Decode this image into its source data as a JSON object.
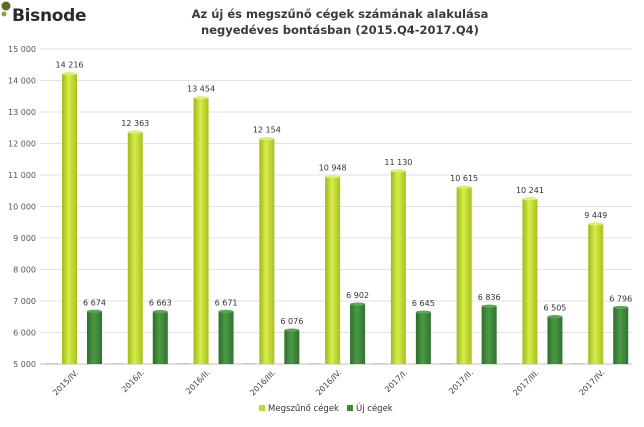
{
  "logo": {
    "text": "Bisnode"
  },
  "chart_data": {
    "type": "bar",
    "title_line1": "Az új és megszűnő cégek számának alakulása",
    "title_line2": "negyedéves bontásban (2015.Q4-2017.Q4)",
    "categories": [
      "2015/IV.",
      "2016/I.",
      "2016/II.",
      "2016/III.",
      "2016/IV.",
      "2017/I.",
      "2017/II.",
      "2017/III.",
      "2017/IV."
    ],
    "series": [
      {
        "name": "Megszűnő cégek",
        "color": "#c4d930",
        "values": [
          14216,
          12363,
          13454,
          12154,
          10948,
          11130,
          10615,
          10241,
          9449
        ],
        "labels": [
          "14 216",
          "12 363",
          "13 454",
          "12 154",
          "10 948",
          "11 130",
          "10 615",
          "10 241",
          "9 449"
        ]
      },
      {
        "name": "Új cégek",
        "color": "#3f8a3a",
        "values": [
          6674,
          6663,
          6671,
          6076,
          6902,
          6645,
          6836,
          6505,
          6796
        ],
        "labels": [
          "6 674",
          "6 663",
          "6 671",
          "6 076",
          "6 902",
          "6 645",
          "6 836",
          "6 505",
          "6 796"
        ]
      }
    ],
    "yticks": [
      5000,
      6000,
      7000,
      8000,
      9000,
      10000,
      11000,
      12000,
      13000,
      14000,
      15000
    ],
    "ytick_labels": [
      "5 000",
      "6 000",
      "7 000",
      "8 000",
      "9 000",
      "10 000",
      "11 000",
      "12 000",
      "13 000",
      "14 000",
      "15 000"
    ],
    "ylim": [
      5000,
      15000
    ],
    "grid": true,
    "legend": "bottom-center"
  }
}
